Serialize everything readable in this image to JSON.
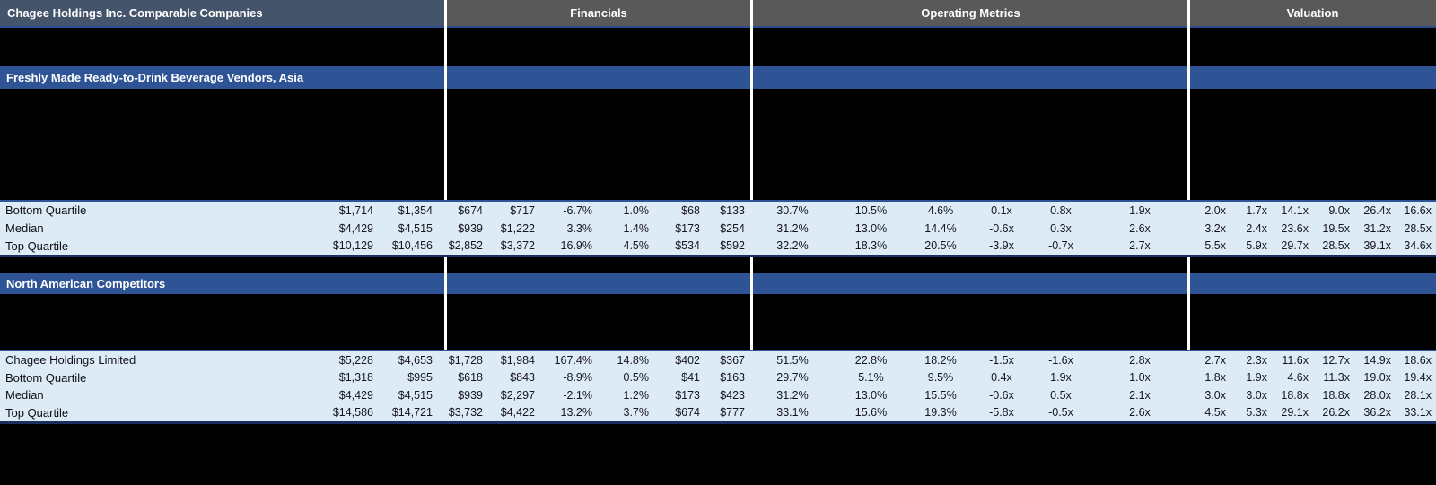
{
  "header": {
    "title": "Chagee Holdings Inc. Comparable Companies",
    "financials_label": "Financials",
    "operating_label": "Operating Metrics",
    "valuation_label": "Valuation"
  },
  "colors": {
    "title_bar": "#44546A",
    "section_bar": "#595959",
    "group_bar": "#2F5496",
    "row_fill": "#DDEBF7",
    "separator": "#FFFFFF"
  },
  "groups": [
    {
      "label": "Freshly Made Ready-to-Drink Beverage Vendors, Asia",
      "rows": [
        {
          "cells": [
            "Bottom Quartile",
            "$1,714",
            "$1,354",
            "$674",
            "$717",
            "-6.7%",
            "1.0%",
            "$68",
            "$133",
            "30.7%",
            "10.5%",
            "4.6%",
            "0.1x",
            "0.8x",
            "1.9x",
            "2.0x",
            "1.7x",
            "14.1x",
            "9.0x",
            "26.4x",
            "16.6x"
          ]
        },
        {
          "cells": [
            "Median",
            "$4,429",
            "$4,515",
            "$939",
            "$1,222",
            "3.3%",
            "1.4%",
            "$173",
            "$254",
            "31.2%",
            "13.0%",
            "14.4%",
            "-0.6x",
            "0.3x",
            "2.6x",
            "3.2x",
            "2.4x",
            "23.6x",
            "19.5x",
            "31.2x",
            "28.5x"
          ]
        },
        {
          "cells": [
            "Top Quartile",
            "$10,129",
            "$10,456",
            "$2,852",
            "$3,372",
            "16.9%",
            "4.5%",
            "$534",
            "$592",
            "32.2%",
            "18.3%",
            "20.5%",
            "-3.9x",
            "-0.7x",
            "2.7x",
            "5.5x",
            "5.9x",
            "29.7x",
            "28.5x",
            "39.1x",
            "34.6x"
          ]
        }
      ]
    },
    {
      "label": "North American Competitors",
      "rows": [
        {
          "cells": [
            "Chagee Holdings Limited",
            "$5,228",
            "$4,653",
            "$1,728",
            "$1,984",
            "167.4%",
            "14.8%",
            "$402",
            "$367",
            "51.5%",
            "22.8%",
            "18.2%",
            "-1.5x",
            "-1.6x",
            "2.8x",
            "2.7x",
            "2.3x",
            "11.6x",
            "12.7x",
            "14.9x",
            "18.6x"
          ]
        },
        {
          "cells": [
            "Bottom Quartile",
            "$1,318",
            "$995",
            "$618",
            "$843",
            "-8.9%",
            "0.5%",
            "$41",
            "$163",
            "29.7%",
            "5.1%",
            "9.5%",
            "0.4x",
            "1.9x",
            "1.0x",
            "1.8x",
            "1.9x",
            "4.6x",
            "11.3x",
            "19.0x",
            "19.4x"
          ]
        },
        {
          "cells": [
            "Median",
            "$4,429",
            "$4,515",
            "$939",
            "$2,297",
            "-2.1%",
            "1.2%",
            "$173",
            "$423",
            "31.2%",
            "13.0%",
            "15.5%",
            "-0.6x",
            "0.5x",
            "2.1x",
            "3.0x",
            "3.0x",
            "18.8x",
            "18.8x",
            "28.0x",
            "28.1x"
          ]
        },
        {
          "cells": [
            "Top Quartile",
            "$14,586",
            "$14,721",
            "$3,732",
            "$4,422",
            "13.2%",
            "3.7%",
            "$674",
            "$777",
            "33.1%",
            "15.6%",
            "19.3%",
            "-5.8x",
            "-0.5x",
            "2.6x",
            "4.5x",
            "5.3x",
            "29.1x",
            "26.2x",
            "36.2x",
            "33.1x"
          ]
        }
      ]
    }
  ]
}
